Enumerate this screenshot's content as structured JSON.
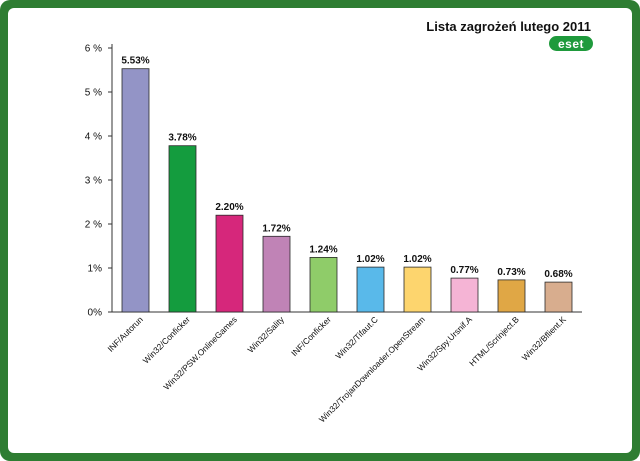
{
  "chart_data": {
    "type": "bar",
    "title": "Lista zagrożeń lutego 2011",
    "categories": [
      "INF/Autorun",
      "Win32/Conficker",
      "Win32/PSW.OnlineGames",
      "Win32/Sality",
      "INF/Conficker",
      "Win32/Tifaut.C",
      "Win32/TrojanDownloader.OpenStream",
      "Win32/Spy.Ursnif.A",
      "HTML/Scrinject.B",
      "Win32/Bflient.K"
    ],
    "values": [
      5.53,
      3.78,
      2.2,
      1.72,
      1.24,
      1.02,
      1.02,
      0.77,
      0.73,
      0.68
    ],
    "value_labels": [
      "5.53%",
      "3.78%",
      "2.20%",
      "1.72%",
      "1.24%",
      "1.02%",
      "1.02%",
      "0.77%",
      "0.73%",
      "0.68%"
    ],
    "colors": [
      "#9394c6",
      "#149c3e",
      "#d6277b",
      "#c083b6",
      "#8fcc69",
      "#59b9ea",
      "#fdd56e",
      "#f5b4d5",
      "#e0a745",
      "#d8ad8e"
    ],
    "yticks": [
      "0%",
      "1%",
      "2 %",
      "3 %",
      "4 %",
      "5 %",
      "6 %"
    ],
    "ylim": [
      0,
      6
    ],
    "grid": false,
    "logo": "eset"
  }
}
